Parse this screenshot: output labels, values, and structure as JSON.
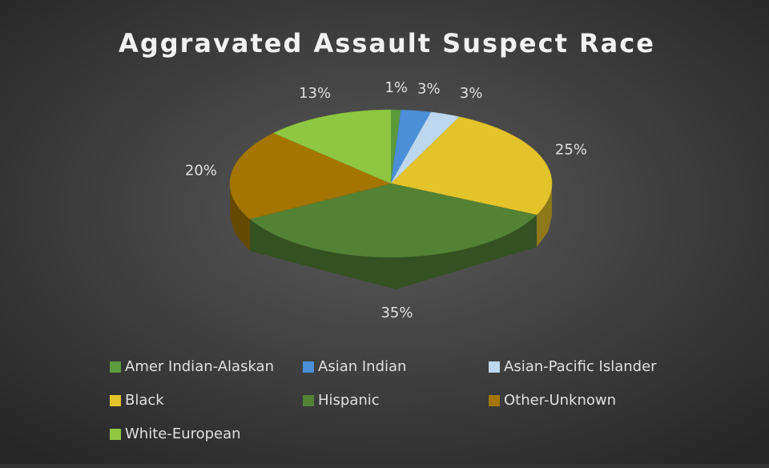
{
  "chart_data": {
    "type": "pie",
    "title": "Aggravated Assault Suspect Race",
    "categories": [
      "Amer Indian-Alaskan",
      "Asian Indian",
      "Asian-Pacific Islander",
      "Black",
      "Hispanic",
      "Other-Unknown",
      "White-European"
    ],
    "values": [
      1,
      3,
      3,
      25,
      35,
      20,
      13
    ],
    "value_labels": [
      "1%",
      "3%",
      "3%",
      "25%",
      "35%",
      "20%",
      "13%"
    ],
    "colors": [
      "#5b9b3c",
      "#4a8fd8",
      "#bdd7ee",
      "#e3c32a",
      "#548235",
      "#a47500",
      "#8ec742"
    ],
    "legend": "bottom"
  }
}
